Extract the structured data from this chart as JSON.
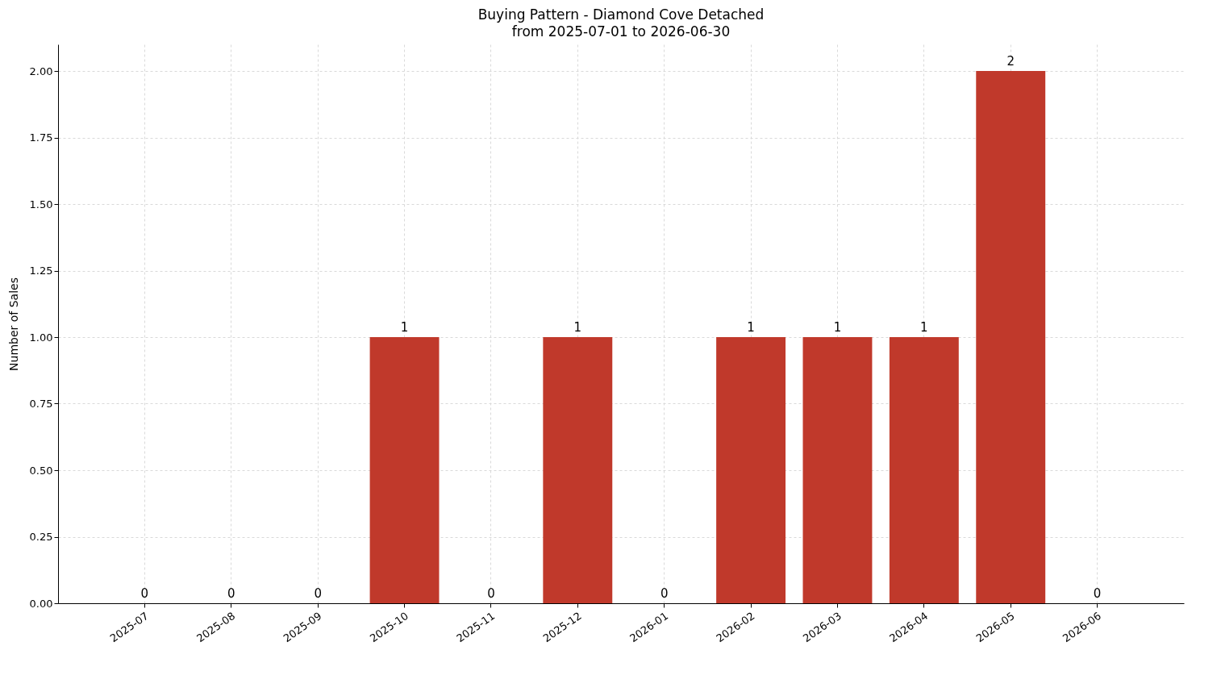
{
  "chart_data": {
    "type": "bar",
    "title": "Buying Pattern - Diamond Cove Detached",
    "subtitle": "from 2025-07-01 to 2026-06-30",
    "ylabel": "Number of Sales",
    "categories": [
      "2025-07",
      "2025-08",
      "2025-09",
      "2025-10",
      "2025-11",
      "2025-12",
      "2026-01",
      "2026-02",
      "2026-03",
      "2026-04",
      "2026-05",
      "2026-06"
    ],
    "values": [
      0,
      0,
      0,
      1,
      0,
      1,
      0,
      1,
      1,
      1,
      2,
      0
    ],
    "color": "#c0392b",
    "ylim": [
      0,
      2.1
    ],
    "yticks": [
      {
        "value": 0,
        "label": "0.00"
      },
      {
        "value": 0.25,
        "label": "0.25"
      },
      {
        "value": 0.5,
        "label": "0.50"
      },
      {
        "value": 0.75,
        "label": "0.75"
      },
      {
        "value": 1,
        "label": "1.00"
      },
      {
        "value": 1.25,
        "label": "1.25"
      },
      {
        "value": 1.5,
        "label": "1.50"
      },
      {
        "value": 1.75,
        "label": "1.75"
      },
      {
        "value": 2,
        "label": "2.00"
      }
    ],
    "grid": true,
    "data_labels": true
  }
}
